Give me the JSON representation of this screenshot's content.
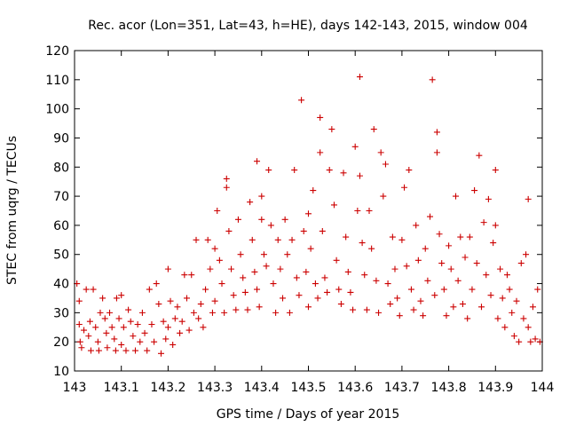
{
  "chart_data": {
    "type": "scatter",
    "title": "Rec. acor (Lon=351, Lat=43, h=HE), days 142-143, 2015, window 004",
    "xlabel": "GPS time / Days of year 2015",
    "ylabel": "STEC from uqrg / TECUs",
    "xlim": [
      143,
      144
    ],
    "ylim": [
      10,
      120
    ],
    "x_ticks": [
      "143",
      "143.1",
      "143.2",
      "143.3",
      "143.4",
      "143.5",
      "143.6",
      "143.7",
      "143.8",
      "143.9",
      "144"
    ],
    "y_ticks": [
      "10",
      "20",
      "30",
      "40",
      "50",
      "60",
      "70",
      "80",
      "90",
      "100",
      "110",
      "120"
    ],
    "grid": false,
    "marker": "plus",
    "colors": {
      "points": "#cc0000",
      "axes": "#000000",
      "background": "#ffffff"
    },
    "points": [
      [
        143.005,
        40
      ],
      [
        143.01,
        34
      ],
      [
        143.01,
        26
      ],
      [
        143.012,
        20
      ],
      [
        143.015,
        18
      ],
      [
        143.02,
        24
      ],
      [
        143.025,
        38
      ],
      [
        143.03,
        22
      ],
      [
        143.033,
        27
      ],
      [
        143.035,
        17
      ],
      [
        143.04,
        38
      ],
      [
        143.045,
        25
      ],
      [
        143.05,
        20
      ],
      [
        143.052,
        17
      ],
      [
        143.055,
        30
      ],
      [
        143.06,
        35
      ],
      [
        143.065,
        28
      ],
      [
        143.068,
        23
      ],
      [
        143.07,
        18
      ],
      [
        143.075,
        30
      ],
      [
        143.08,
        25
      ],
      [
        143.085,
        21
      ],
      [
        143.088,
        17
      ],
      [
        143.09,
        35
      ],
      [
        143.095,
        28
      ],
      [
        143.1,
        36
      ],
      [
        143.1,
        19
      ],
      [
        143.105,
        25
      ],
      [
        143.11,
        17
      ],
      [
        143.115,
        31
      ],
      [
        143.12,
        27
      ],
      [
        143.125,
        22
      ],
      [
        143.13,
        17
      ],
      [
        143.135,
        26
      ],
      [
        143.14,
        20
      ],
      [
        143.145,
        30
      ],
      [
        143.15,
        23
      ],
      [
        143.155,
        17
      ],
      [
        143.16,
        38
      ],
      [
        143.165,
        26
      ],
      [
        143.17,
        20
      ],
      [
        143.175,
        40
      ],
      [
        143.18,
        33
      ],
      [
        143.185,
        16
      ],
      [
        143.19,
        27
      ],
      [
        143.195,
        21
      ],
      [
        143.2,
        45
      ],
      [
        143.2,
        25
      ],
      [
        143.205,
        34
      ],
      [
        143.21,
        19
      ],
      [
        143.215,
        28
      ],
      [
        143.22,
        32
      ],
      [
        143.225,
        23
      ],
      [
        143.23,
        27
      ],
      [
        143.235,
        43
      ],
      [
        143.24,
        35
      ],
      [
        143.245,
        24
      ],
      [
        143.25,
        43
      ],
      [
        143.255,
        30
      ],
      [
        143.26,
        55
      ],
      [
        143.265,
        28
      ],
      [
        143.27,
        33
      ],
      [
        143.275,
        25
      ],
      [
        143.28,
        38
      ],
      [
        143.285,
        55
      ],
      [
        143.29,
        45
      ],
      [
        143.295,
        30
      ],
      [
        143.3,
        52
      ],
      [
        143.3,
        34
      ],
      [
        143.305,
        65
      ],
      [
        143.31,
        48
      ],
      [
        143.315,
        40
      ],
      [
        143.32,
        30
      ],
      [
        143.325,
        76
      ],
      [
        143.325,
        73
      ],
      [
        143.33,
        58
      ],
      [
        143.335,
        45
      ],
      [
        143.34,
        36
      ],
      [
        143.345,
        31
      ],
      [
        143.35,
        62
      ],
      [
        143.355,
        50
      ],
      [
        143.36,
        42
      ],
      [
        143.365,
        37
      ],
      [
        143.37,
        31
      ],
      [
        143.375,
        68
      ],
      [
        143.38,
        55
      ],
      [
        143.385,
        44
      ],
      [
        143.39,
        82
      ],
      [
        143.39,
        38
      ],
      [
        143.395,
        32
      ],
      [
        143.4,
        70
      ],
      [
        143.4,
        62
      ],
      [
        143.405,
        50
      ],
      [
        143.41,
        46
      ],
      [
        143.415,
        79
      ],
      [
        143.42,
        60
      ],
      [
        143.425,
        40
      ],
      [
        143.43,
        30
      ],
      [
        143.435,
        55
      ],
      [
        143.44,
        45
      ],
      [
        143.445,
        35
      ],
      [
        143.45,
        62
      ],
      [
        143.455,
        50
      ],
      [
        143.46,
        30
      ],
      [
        143.465,
        55
      ],
      [
        143.47,
        79
      ],
      [
        143.475,
        42
      ],
      [
        143.48,
        36
      ],
      [
        143.485,
        103
      ],
      [
        143.49,
        58
      ],
      [
        143.495,
        44
      ],
      [
        143.5,
        64
      ],
      [
        143.5,
        32
      ],
      [
        143.505,
        52
      ],
      [
        143.51,
        72
      ],
      [
        143.515,
        40
      ],
      [
        143.52,
        35
      ],
      [
        143.525,
        97
      ],
      [
        143.525,
        85
      ],
      [
        143.53,
        58
      ],
      [
        143.535,
        42
      ],
      [
        143.54,
        37
      ],
      [
        143.545,
        79
      ],
      [
        143.55,
        93
      ],
      [
        143.555,
        67
      ],
      [
        143.56,
        48
      ],
      [
        143.565,
        38
      ],
      [
        143.57,
        33
      ],
      [
        143.575,
        78
      ],
      [
        143.58,
        56
      ],
      [
        143.585,
        44
      ],
      [
        143.59,
        37
      ],
      [
        143.595,
        31
      ],
      [
        143.6,
        87
      ],
      [
        143.605,
        65
      ],
      [
        143.61,
        111
      ],
      [
        143.61,
        77
      ],
      [
        143.615,
        54
      ],
      [
        143.62,
        43
      ],
      [
        143.625,
        31
      ],
      [
        143.63,
        65
      ],
      [
        143.635,
        52
      ],
      [
        143.64,
        93
      ],
      [
        143.645,
        41
      ],
      [
        143.65,
        30
      ],
      [
        143.655,
        85
      ],
      [
        143.66,
        70
      ],
      [
        143.665,
        81
      ],
      [
        143.67,
        40
      ],
      [
        143.675,
        33
      ],
      [
        143.68,
        56
      ],
      [
        143.685,
        45
      ],
      [
        143.69,
        35
      ],
      [
        143.695,
        29
      ],
      [
        143.7,
        55
      ],
      [
        143.705,
        73
      ],
      [
        143.71,
        46
      ],
      [
        143.715,
        79
      ],
      [
        143.72,
        38
      ],
      [
        143.725,
        31
      ],
      [
        143.73,
        60
      ],
      [
        143.735,
        48
      ],
      [
        143.74,
        34
      ],
      [
        143.745,
        29
      ],
      [
        143.75,
        52
      ],
      [
        143.755,
        41
      ],
      [
        143.76,
        63
      ],
      [
        143.765,
        110
      ],
      [
        143.77,
        36
      ],
      [
        143.775,
        92
      ],
      [
        143.775,
        85
      ],
      [
        143.78,
        57
      ],
      [
        143.785,
        47
      ],
      [
        143.79,
        38
      ],
      [
        143.795,
        29
      ],
      [
        143.8,
        53
      ],
      [
        143.805,
        45
      ],
      [
        143.81,
        32
      ],
      [
        143.815,
        70
      ],
      [
        143.82,
        41
      ],
      [
        143.825,
        56
      ],
      [
        143.83,
        33
      ],
      [
        143.835,
        49
      ],
      [
        143.84,
        28
      ],
      [
        143.845,
        56
      ],
      [
        143.85,
        38
      ],
      [
        143.855,
        72
      ],
      [
        143.86,
        47
      ],
      [
        143.865,
        84
      ],
      [
        143.87,
        32
      ],
      [
        143.875,
        61
      ],
      [
        143.88,
        43
      ],
      [
        143.885,
        69
      ],
      [
        143.89,
        36
      ],
      [
        143.895,
        54
      ],
      [
        143.9,
        79
      ],
      [
        143.9,
        60
      ],
      [
        143.905,
        28
      ],
      [
        143.91,
        45
      ],
      [
        143.915,
        35
      ],
      [
        143.92,
        25
      ],
      [
        143.925,
        43
      ],
      [
        143.93,
        38
      ],
      [
        143.935,
        30
      ],
      [
        143.94,
        22
      ],
      [
        143.945,
        34
      ],
      [
        143.95,
        20
      ],
      [
        143.955,
        47
      ],
      [
        143.96,
        28
      ],
      [
        143.965,
        50
      ],
      [
        143.97,
        69
      ],
      [
        143.97,
        25
      ],
      [
        143.975,
        20
      ],
      [
        143.98,
        32
      ],
      [
        143.985,
        21
      ],
      [
        143.99,
        38
      ],
      [
        143.995,
        20
      ]
    ]
  }
}
